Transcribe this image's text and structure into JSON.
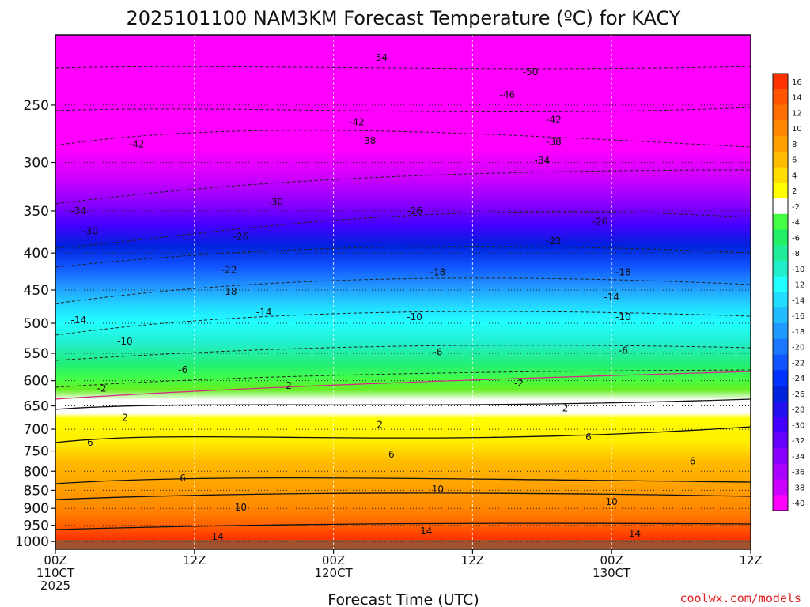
{
  "chart_data": {
    "type": "heatmap",
    "title": "2025101100 NAM3KM Forecast Temperature (ºC) for KACY",
    "xlabel": "Forecast Time (UTC)",
    "ylabel": "",
    "credit": "coolwx.com/models",
    "y_scale": "log",
    "y_ticks": [
      250,
      300,
      350,
      400,
      450,
      500,
      550,
      600,
      650,
      700,
      750,
      800,
      850,
      900,
      950,
      1000
    ],
    "ylim": [
      1025,
      200
    ],
    "x_ticks": [
      {
        "hours": 0,
        "line1": "00Z",
        "line2": "110CT",
        "line3": "2025"
      },
      {
        "hours": 12,
        "line1": "12Z",
        "line2": "",
        "line3": ""
      },
      {
        "hours": 24,
        "line1": "00Z",
        "line2": "120CT",
        "line3": ""
      },
      {
        "hours": 36,
        "line1": "12Z",
        "line2": "",
        "line3": ""
      },
      {
        "hours": 48,
        "line1": "00Z",
        "line2": "130CT",
        "line3": ""
      },
      {
        "hours": 60,
        "line1": "12Z",
        "line2": "",
        "line3": ""
      }
    ],
    "xlim": [
      0,
      60
    ],
    "colorbar": {
      "labels": [
        16,
        14,
        12,
        10,
        8,
        6,
        4,
        2,
        -2,
        -4,
        -6,
        -8,
        -10,
        -12,
        -14,
        -16,
        -18,
        -20,
        -22,
        -24,
        -26,
        -28,
        -30,
        -32,
        -34,
        -36,
        -38,
        -40
      ],
      "colors": [
        "#ff3300",
        "#ff5500",
        "#ff6e00",
        "#ff8800",
        "#ffa000",
        "#ffbb00",
        "#ffdd00",
        "#ffff00",
        "#ffffff",
        "#44ff44",
        "#22ee66",
        "#22ee99",
        "#22eecc",
        "#22ffff",
        "#22ddff",
        "#22bbff",
        "#2299ff",
        "#1a77ff",
        "#1155ff",
        "#0033ff",
        "#0022dd",
        "#2211ee",
        "#4400ff",
        "#6600ff",
        "#8800ff",
        "#aa00ff",
        "#cc00ff",
        "#ff00ff"
      ]
    },
    "isotherms": [
      {
        "label": "-54",
        "hours": 28,
        "p": 215
      },
      {
        "label": "-50",
        "hours": 41,
        "p": 225
      },
      {
        "label": "-46",
        "hours": 39,
        "p": 242
      },
      {
        "label": "-42",
        "hours": 7,
        "p": 283
      },
      {
        "label": "-42",
        "hours": 26,
        "p": 264
      },
      {
        "label": "-42",
        "hours": 43,
        "p": 262
      },
      {
        "label": "-38",
        "hours": 27,
        "p": 280
      },
      {
        "label": "-38",
        "hours": 43,
        "p": 281
      },
      {
        "label": "-34",
        "hours": 2,
        "p": 350
      },
      {
        "label": "-34",
        "hours": 42,
        "p": 298
      },
      {
        "label": "-30",
        "hours": 3,
        "p": 373
      },
      {
        "label": "-30",
        "hours": 19,
        "p": 340
      },
      {
        "label": "-26",
        "hours": 16,
        "p": 380
      },
      {
        "label": "-26",
        "hours": 31,
        "p": 350
      },
      {
        "label": "-26",
        "hours": 47,
        "p": 362
      },
      {
        "label": "-22",
        "hours": 15,
        "p": 422
      },
      {
        "label": "-22",
        "hours": 43,
        "p": 385
      },
      {
        "label": "-18",
        "hours": 15,
        "p": 452
      },
      {
        "label": "-18",
        "hours": 33,
        "p": 425
      },
      {
        "label": "-18",
        "hours": 49,
        "p": 425
      },
      {
        "label": "-14",
        "hours": 2,
        "p": 495
      },
      {
        "label": "-14",
        "hours": 18,
        "p": 483
      },
      {
        "label": "-14",
        "hours": 48,
        "p": 460
      },
      {
        "label": "-10",
        "hours": 6,
        "p": 530
      },
      {
        "label": "-10",
        "hours": 31,
        "p": 490
      },
      {
        "label": "-10",
        "hours": 49,
        "p": 490
      },
      {
        "label": "-6",
        "hours": 11,
        "p": 580
      },
      {
        "label": "-6",
        "hours": 33,
        "p": 548
      },
      {
        "label": "-6",
        "hours": 49,
        "p": 545
      },
      {
        "label": "-2",
        "hours": 4,
        "p": 615
      },
      {
        "label": "-2",
        "hours": 20,
        "p": 610
      },
      {
        "label": "-2",
        "hours": 40,
        "p": 605
      },
      {
        "label": "2",
        "hours": 6,
        "p": 675
      },
      {
        "label": "2",
        "hours": 28,
        "p": 690
      },
      {
        "label": "2",
        "hours": 44,
        "p": 655
      },
      {
        "label": "6",
        "hours": 3,
        "p": 730
      },
      {
        "label": "6",
        "hours": 11,
        "p": 818
      },
      {
        "label": "6",
        "hours": 29,
        "p": 758
      },
      {
        "label": "6",
        "hours": 46,
        "p": 718
      },
      {
        "label": "6",
        "hours": 55,
        "p": 775
      },
      {
        "label": "10",
        "hours": 16,
        "p": 897
      },
      {
        "label": "10",
        "hours": 33,
        "p": 847
      },
      {
        "label": "10",
        "hours": 48,
        "p": 882
      },
      {
        "label": "14",
        "hours": 14,
        "p": 985
      },
      {
        "label": "14",
        "hours": 32,
        "p": 968
      },
      {
        "label": "14",
        "hours": 50,
        "p": 975
      }
    ]
  }
}
